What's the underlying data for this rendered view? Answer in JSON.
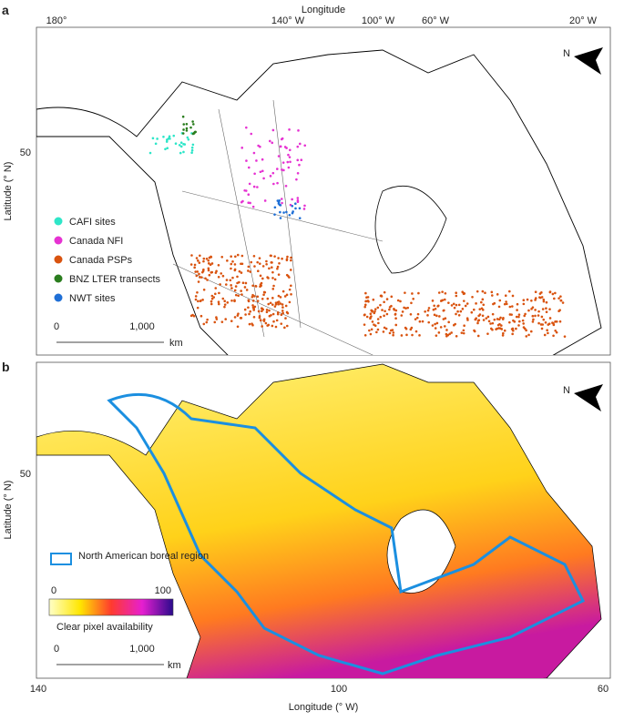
{
  "panel_a": {
    "label": "a",
    "x_axis_title": "Longitude",
    "x_ticks": [
      "180°",
      "140° W",
      "100° W",
      "60° W",
      "20° W"
    ],
    "y_axis_title": "Latitude (° N)",
    "y_ticks": [
      "50"
    ],
    "north": "N",
    "legend": [
      {
        "name": "CAFI sites",
        "color": "#2ee6c8"
      },
      {
        "name": "Canada NFI",
        "color": "#e632d2"
      },
      {
        "name": "Canada PSPs",
        "color": "#d9530f"
      },
      {
        "name": "BNZ LTER transects",
        "color": "#2a7d1e"
      },
      {
        "name": "NWT sites",
        "color": "#1f6fd6"
      }
    ],
    "scale": [
      "0",
      "1,000",
      "km"
    ]
  },
  "panel_b": {
    "label": "b",
    "y_axis_title": "Latitude (° N)",
    "y_ticks": [
      "50"
    ],
    "north": "N",
    "boreal_legend": {
      "name": "North American boreal region",
      "color": "#1b8fe0"
    },
    "colorbar": {
      "min": "0",
      "max": "100",
      "title": "Clear pixel availability"
    },
    "scale": [
      "0",
      "1,000",
      "km"
    ],
    "x_ticks": [
      "140",
      "100",
      "60"
    ],
    "x_axis_title": "Longitude (° W)"
  }
}
